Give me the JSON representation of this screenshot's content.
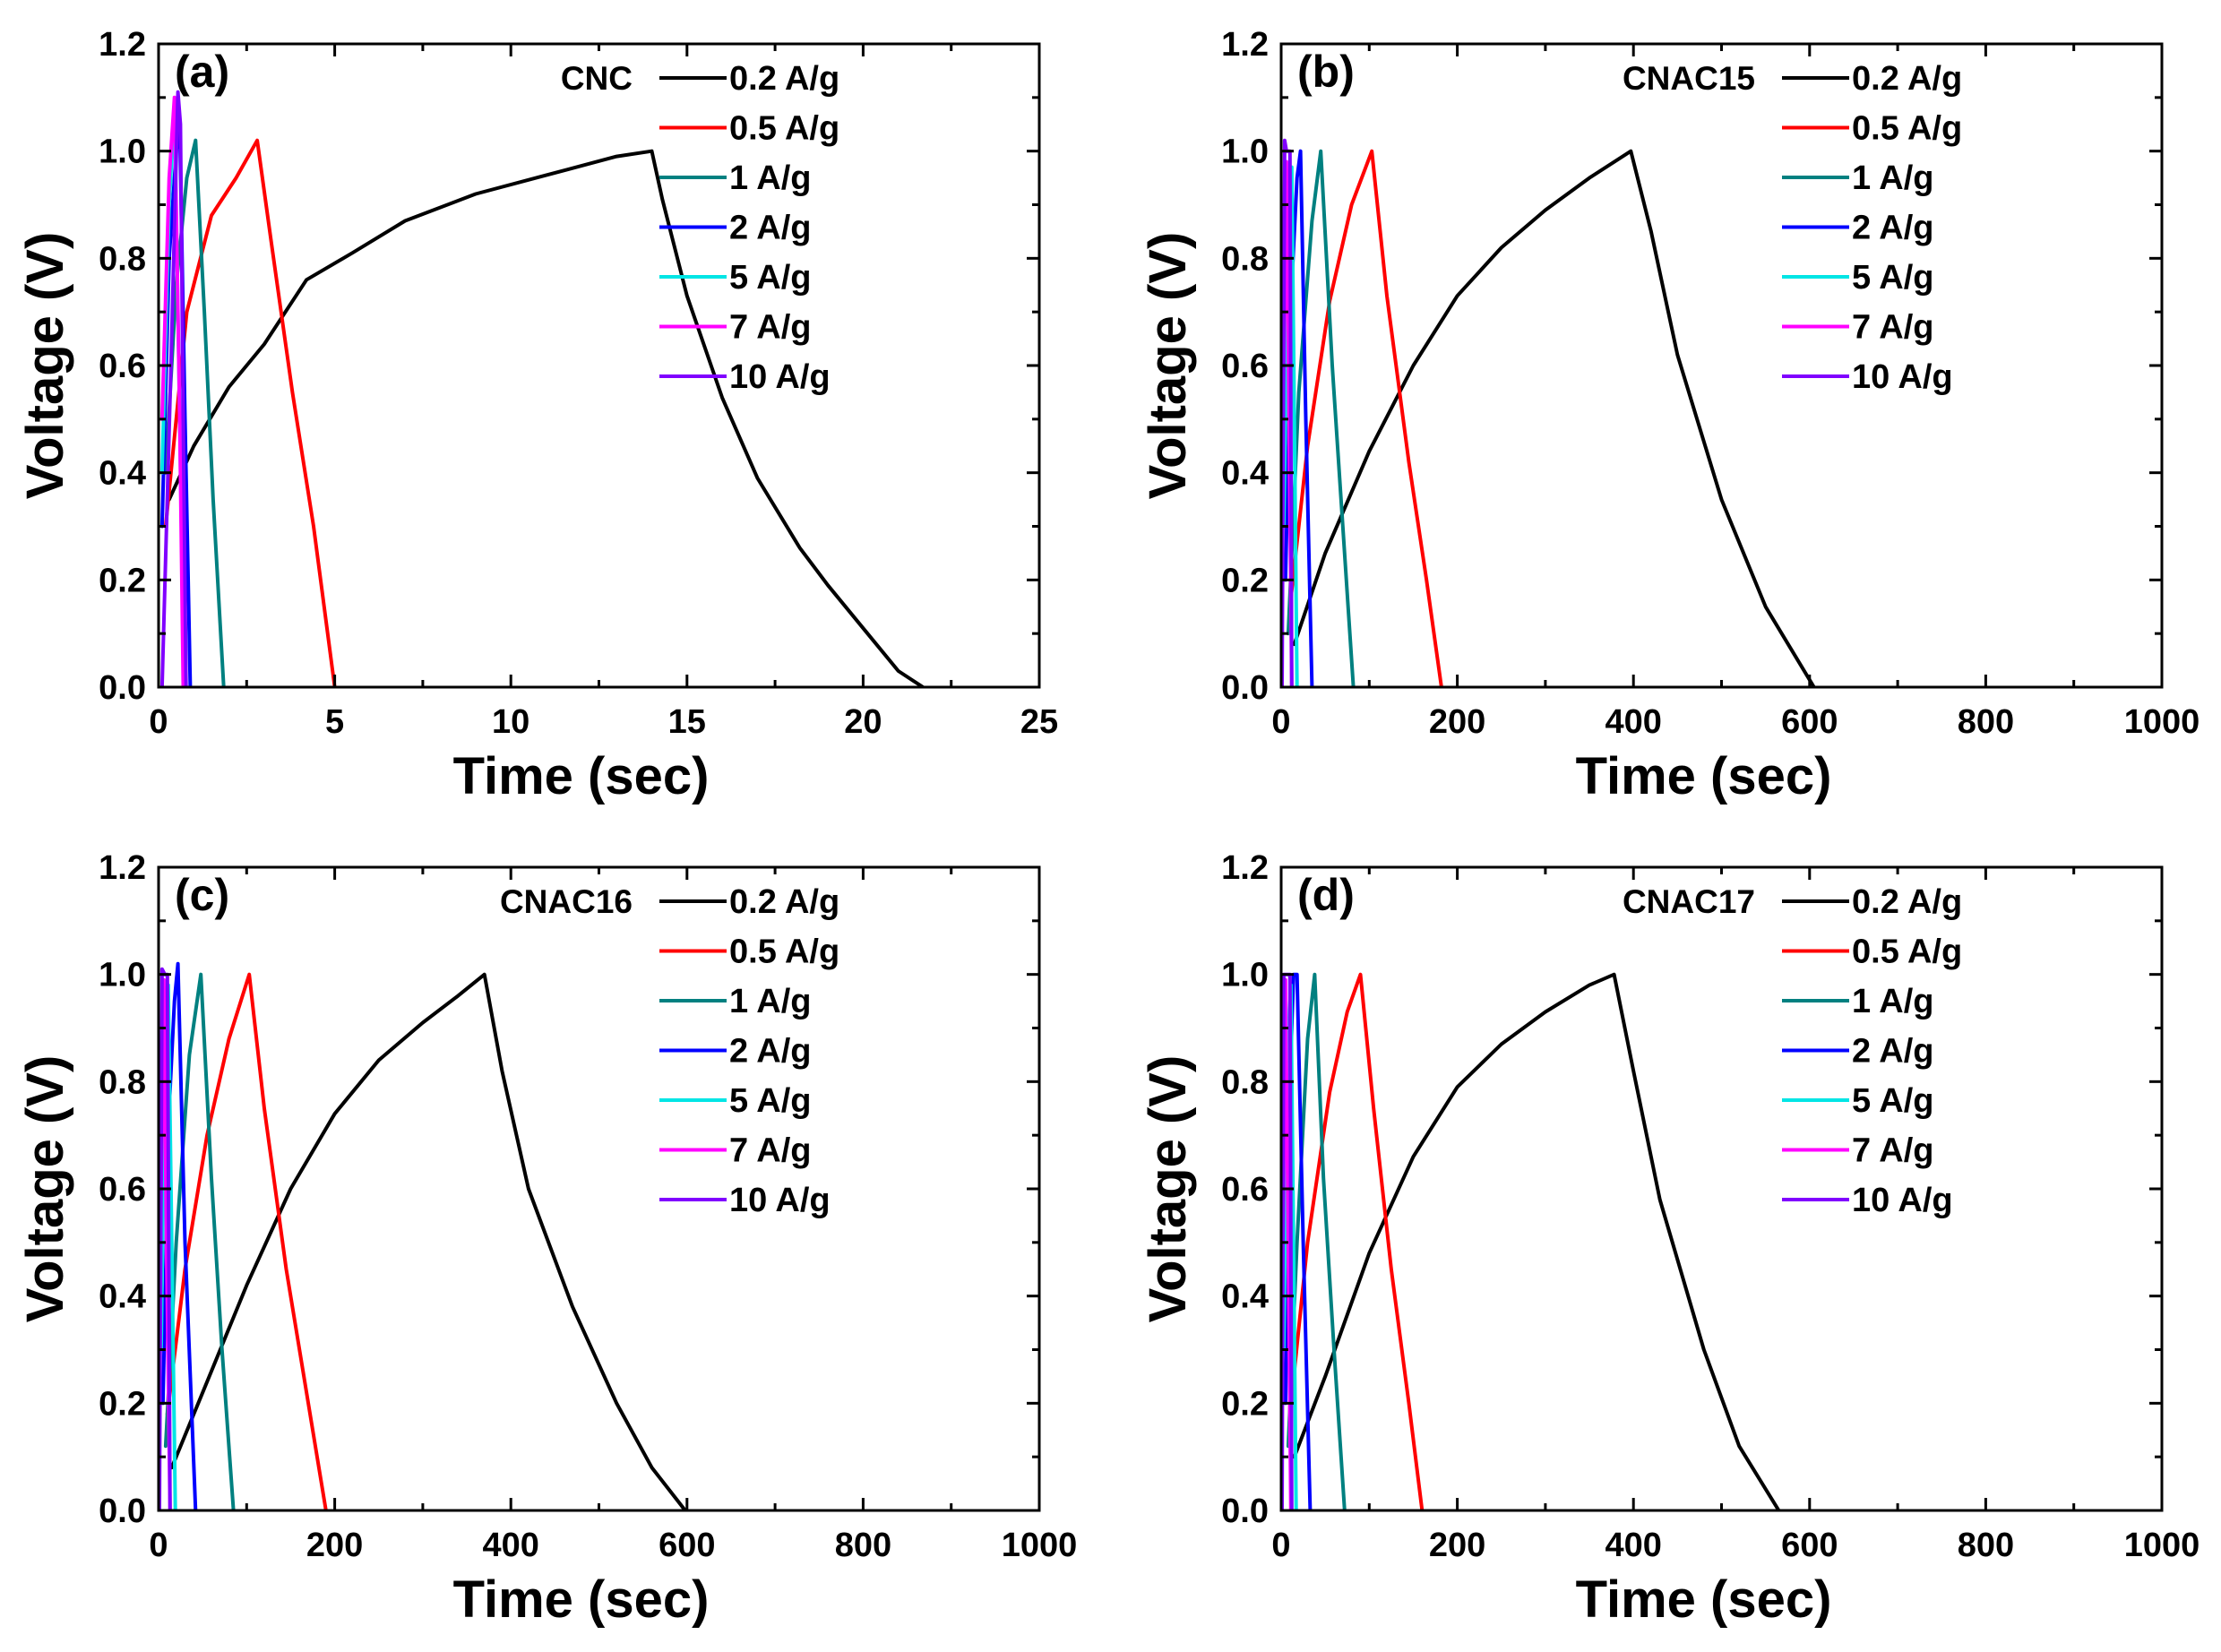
{
  "chart_data": [
    {
      "type": "line",
      "panel": "(a)",
      "sample": "CNC",
      "xlabel": "Time (sec)",
      "ylabel": "Voltage (V)",
      "xlim": [
        0,
        25
      ],
      "ylim": [
        0,
        1.2
      ],
      "xticks": [
        0,
        5,
        10,
        15,
        20,
        25
      ],
      "yticks": [
        0.0,
        0.2,
        0.4,
        0.6,
        0.8,
        1.0,
        1.2
      ],
      "xtick_labels": [
        "0",
        "5",
        "10",
        "15",
        "20",
        "25"
      ],
      "ytick_labels": [
        "0.0",
        "0.2",
        "0.4",
        "0.6",
        "0.8",
        "1.0",
        "1.2"
      ],
      "legend_position": "top-right",
      "series": [
        {
          "name": "0.2 A/g",
          "color": "#000000",
          "x": [
            0.3,
            1,
            2,
            3,
            4.2,
            5.5,
            7,
            9,
            11,
            13,
            14,
            14.3,
            15,
            16,
            17,
            18.2,
            19,
            20,
            21,
            21.7
          ],
          "y": [
            0.35,
            0.45,
            0.56,
            0.64,
            0.76,
            0.81,
            0.87,
            0.92,
            0.955,
            0.99,
            1.0,
            0.91,
            0.73,
            0.54,
            0.39,
            0.26,
            0.19,
            0.11,
            0.03,
            0.0
          ]
        },
        {
          "name": "0.5 A/g",
          "color": "#ff0000",
          "x": [
            0.2,
            0.8,
            1.5,
            2.2,
            2.8,
            3.2,
            3.8,
            4.4,
            5.0
          ],
          "y": [
            0.3,
            0.7,
            0.88,
            0.95,
            1.02,
            0.83,
            0.55,
            0.3,
            0.0
          ]
        },
        {
          "name": "1 A/g",
          "color": "#008080",
          "x": [
            0.2,
            0.5,
            0.8,
            1.05,
            1.3,
            1.55,
            1.85
          ],
          "y": [
            0.4,
            0.75,
            0.95,
            1.02,
            0.7,
            0.35,
            0.0
          ]
        },
        {
          "name": "2 A/g",
          "color": "#0000ff",
          "x": [
            0.1,
            0.3,
            0.5,
            0.6,
            0.75,
            0.9
          ],
          "y": [
            0.3,
            0.8,
            1.0,
            1.05,
            0.5,
            0.0
          ]
        },
        {
          "name": "5 A/g",
          "color": "#00e5e5",
          "x": [
            0.1,
            0.3,
            0.45,
            0.6,
            0.72
          ],
          "y": [
            0.4,
            0.9,
            1.08,
            0.5,
            0.0
          ]
        },
        {
          "name": "7 A/g",
          "color": "#ff00ff",
          "x": [
            0.1,
            0.3,
            0.45,
            0.6,
            0.7
          ],
          "y": [
            0.5,
            0.95,
            1.1,
            0.5,
            0.0
          ]
        },
        {
          "name": "10 A/g",
          "color": "#8000ff",
          "x": [
            0.1,
            0.35,
            0.55,
            0.62,
            0.7,
            0.78
          ],
          "y": [
            0.0,
            0.6,
            1.11,
            1.05,
            0.5,
            0.0
          ]
        }
      ]
    },
    {
      "type": "line",
      "panel": "(b)",
      "sample": "CNAC15",
      "xlabel": "Time (sec)",
      "ylabel": "Voltage (V)",
      "xlim": [
        0,
        1000
      ],
      "ylim": [
        0,
        1.2
      ],
      "xticks": [
        0,
        200,
        400,
        600,
        800,
        1000
      ],
      "yticks": [
        0.0,
        0.2,
        0.4,
        0.6,
        0.8,
        1.0,
        1.2
      ],
      "xtick_labels": [
        "0",
        "200",
        "400",
        "600",
        "800",
        "1000"
      ],
      "ytick_labels": [
        "0.0",
        "0.2",
        "0.4",
        "0.6",
        "0.8",
        "1.0",
        "1.2"
      ],
      "legend_position": "top-right",
      "series": [
        {
          "name": "0.2 A/g",
          "color": "#000000",
          "x": [
            15,
            50,
            100,
            150,
            200,
            250,
            300,
            350,
            397,
            420,
            450,
            500,
            550,
            605
          ],
          "y": [
            0.08,
            0.25,
            0.44,
            0.6,
            0.73,
            0.82,
            0.89,
            0.95,
            1.0,
            0.85,
            0.62,
            0.35,
            0.15,
            0.0
          ]
        },
        {
          "name": "0.5 A/g",
          "color": "#ff0000",
          "x": [
            10,
            30,
            55,
            80,
            103,
            120,
            145,
            165,
            182
          ],
          "y": [
            0.15,
            0.45,
            0.72,
            0.9,
            1.0,
            0.73,
            0.42,
            0.2,
            0.0
          ]
        },
        {
          "name": "1 A/g",
          "color": "#008080",
          "x": [
            8,
            20,
            35,
            45,
            58,
            70,
            82
          ],
          "y": [
            0.1,
            0.55,
            0.87,
            1.0,
            0.6,
            0.3,
            0.0
          ]
        },
        {
          "name": "2 A/g",
          "color": "#0000ff",
          "x": [
            5,
            12,
            18,
            22,
            28,
            35
          ],
          "y": [
            0.2,
            0.75,
            0.95,
            1.0,
            0.5,
            0.0
          ]
        },
        {
          "name": "5 A/g",
          "color": "#00e5e5",
          "x": [
            3,
            8,
            12,
            15,
            18
          ],
          "y": [
            0.3,
            0.85,
            0.97,
            0.5,
            0.0
          ]
        },
        {
          "name": "7 A/g",
          "color": "#ff00ff",
          "x": [
            2,
            6,
            9,
            12
          ],
          "y": [
            0.5,
            0.98,
            0.5,
            0.0
          ]
        },
        {
          "name": "10 A/g",
          "color": "#8000ff",
          "x": [
            1,
            4,
            6,
            10,
            12
          ],
          "y": [
            0.0,
            1.02,
            1.0,
            1.0,
            0.0
          ]
        }
      ]
    },
    {
      "type": "line",
      "panel": "(c)",
      "sample": "CNAC16",
      "xlabel": "Time (sec)",
      "ylabel": "Voltage (V)",
      "xlim": [
        0,
        1000
      ],
      "ylim": [
        0,
        1.2
      ],
      "xticks": [
        0,
        200,
        400,
        600,
        800,
        1000
      ],
      "yticks": [
        0.0,
        0.2,
        0.4,
        0.6,
        0.8,
        1.0,
        1.2
      ],
      "xtick_labels": [
        "0",
        "200",
        "400",
        "600",
        "800",
        "1000"
      ],
      "ytick_labels": [
        "0.0",
        "0.2",
        "0.4",
        "0.6",
        "0.8",
        "1.0",
        "1.2"
      ],
      "legend_position": "top-right",
      "series": [
        {
          "name": "0.2 A/g",
          "color": "#000000",
          "x": [
            15,
            50,
            100,
            150,
            200,
            250,
            300,
            340,
            370,
            390,
            420,
            470,
            520,
            560,
            598
          ],
          "y": [
            0.08,
            0.22,
            0.42,
            0.6,
            0.74,
            0.84,
            0.91,
            0.96,
            1.0,
            0.82,
            0.6,
            0.38,
            0.2,
            0.08,
            0.0
          ]
        },
        {
          "name": "0.5 A/g",
          "color": "#ff0000",
          "x": [
            10,
            30,
            55,
            80,
            103,
            120,
            145,
            170,
            190
          ],
          "y": [
            0.18,
            0.45,
            0.7,
            0.88,
            1.0,
            0.75,
            0.45,
            0.2,
            0.0
          ]
        },
        {
          "name": "1 A/g",
          "color": "#008080",
          "x": [
            8,
            20,
            35,
            48,
            60,
            72,
            85
          ],
          "y": [
            0.12,
            0.5,
            0.85,
            1.0,
            0.62,
            0.3,
            0.0
          ]
        },
        {
          "name": "2 A/g",
          "color": "#0000ff",
          "x": [
            5,
            12,
            18,
            22,
            30,
            42
          ],
          "y": [
            0.2,
            0.75,
            0.95,
            1.02,
            0.5,
            0.0
          ]
        },
        {
          "name": "5 A/g",
          "color": "#00e5e5",
          "x": [
            3,
            7,
            11,
            15,
            19
          ],
          "y": [
            0.3,
            0.85,
            0.98,
            0.5,
            0.0
          ]
        },
        {
          "name": "7 A/g",
          "color": "#ff00ff",
          "x": [
            2,
            6,
            9,
            13
          ],
          "y": [
            0.5,
            0.99,
            0.5,
            0.0
          ]
        },
        {
          "name": "10 A/g",
          "color": "#8000ff",
          "x": [
            1,
            4,
            7,
            10,
            13
          ],
          "y": [
            0.0,
            1.01,
            1.0,
            1.0,
            0.0
          ]
        }
      ]
    },
    {
      "type": "line",
      "panel": "(d)",
      "sample": "CNAC17",
      "xlabel": "Time (sec)",
      "ylabel": "Voltage (V)",
      "xlim": [
        0,
        1000
      ],
      "ylim": [
        0,
        1.2
      ],
      "xticks": [
        0,
        200,
        400,
        600,
        800,
        1000
      ],
      "yticks": [
        0.0,
        0.2,
        0.4,
        0.6,
        0.8,
        1.0,
        1.2
      ],
      "xtick_labels": [
        "0",
        "200",
        "400",
        "600",
        "800",
        "1000"
      ],
      "ytick_labels": [
        "0.0",
        "0.2",
        "0.4",
        "0.6",
        "0.8",
        "1.0",
        "1.2"
      ],
      "legend_position": "top-right",
      "series": [
        {
          "name": "0.2 A/g",
          "color": "#000000",
          "x": [
            15,
            50,
            100,
            150,
            200,
            250,
            300,
            350,
            378,
            400,
            430,
            480,
            520,
            565
          ],
          "y": [
            0.1,
            0.25,
            0.48,
            0.66,
            0.79,
            0.87,
            0.93,
            0.98,
            1.0,
            0.82,
            0.58,
            0.3,
            0.12,
            0.0
          ]
        },
        {
          "name": "0.5 A/g",
          "color": "#ff0000",
          "x": [
            10,
            30,
            55,
            75,
            90,
            105,
            125,
            145,
            160
          ],
          "y": [
            0.18,
            0.5,
            0.78,
            0.93,
            1.0,
            0.75,
            0.45,
            0.2,
            0.0
          ]
        },
        {
          "name": "1 A/g",
          "color": "#008080",
          "x": [
            8,
            18,
            30,
            38,
            48,
            60,
            72
          ],
          "y": [
            0.12,
            0.5,
            0.88,
            1.0,
            0.62,
            0.3,
            0.0
          ]
        },
        {
          "name": "2 A/g",
          "color": "#0000ff",
          "x": [
            5,
            10,
            14,
            18,
            25,
            33
          ],
          "y": [
            0.2,
            0.8,
            1.0,
            1.0,
            0.5,
            0.0
          ]
        },
        {
          "name": "5 A/g",
          "color": "#00e5e5",
          "x": [
            3,
            7,
            11,
            14,
            17
          ],
          "y": [
            0.3,
            0.85,
            0.98,
            0.5,
            0.0
          ]
        },
        {
          "name": "7 A/g",
          "color": "#ff00ff",
          "x": [
            2,
            5,
            8,
            11
          ],
          "y": [
            0.5,
            0.99,
            0.5,
            0.0
          ]
        },
        {
          "name": "10 A/g",
          "color": "#8000ff",
          "x": [
            1,
            3,
            6,
            10,
            12
          ],
          "y": [
            0.0,
            1.0,
            1.0,
            1.0,
            0.0
          ]
        }
      ]
    }
  ]
}
